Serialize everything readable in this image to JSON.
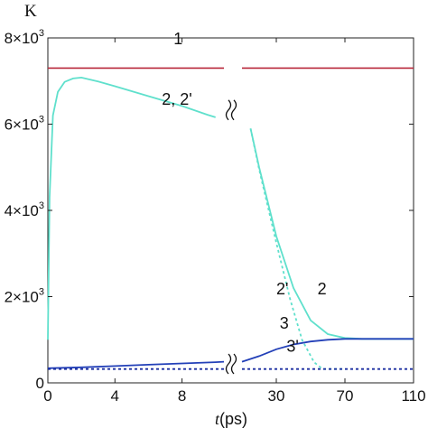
{
  "chart_data": {
    "type": "line",
    "ylabel": "K",
    "xlabel_var": "t",
    "xlabel_unit": "(ps)",
    "colors": {
      "red": "#b8283a",
      "cyan": "#5fe0cc",
      "blue": "#2340b8",
      "dark_blue": "#1c2fa0"
    },
    "x_ticks_left": [
      0,
      4,
      8
    ],
    "x_ticks_right": [
      30,
      70,
      110
    ],
    "x_range_left": [
      0,
      10.5
    ],
    "x_range_right": [
      10,
      110
    ],
    "ylim": [
      0,
      8000
    ],
    "y_ticks": [
      {
        "value": 0,
        "mant": "0",
        "exp": ""
      },
      {
        "value": 2000,
        "mant": "2×10",
        "exp": "3"
      },
      {
        "value": 4000,
        "mant": "4×10",
        "exp": "3"
      },
      {
        "value": 6000,
        "mant": "6×10",
        "exp": "3"
      },
      {
        "value": 8000,
        "mant": "8×10",
        "exp": "3"
      }
    ],
    "series": [
      {
        "id": "1",
        "color": "red",
        "style": "solid",
        "left": [
          [
            0,
            7300
          ],
          [
            10.5,
            7300
          ]
        ],
        "right": [
          [
            10,
            7300
          ],
          [
            110,
            7300
          ]
        ]
      },
      {
        "id": "2",
        "color": "cyan",
        "style": "solid",
        "left": [
          [
            0,
            1000
          ],
          [
            0.1,
            4300
          ],
          [
            0.3,
            6200
          ],
          [
            0.6,
            6750
          ],
          [
            1,
            6980
          ],
          [
            1.5,
            7060
          ],
          [
            2,
            7080
          ],
          [
            3,
            6990
          ],
          [
            4,
            6880
          ],
          [
            6,
            6650
          ],
          [
            8,
            6420
          ],
          [
            9.5,
            6220
          ],
          [
            10,
            6160
          ]
        ],
        "right": [
          [
            15,
            5900
          ],
          [
            20,
            5000
          ],
          [
            30,
            3400
          ],
          [
            40,
            2200
          ],
          [
            50,
            1450
          ],
          [
            60,
            1130
          ],
          [
            70,
            1040
          ],
          [
            80,
            1020
          ],
          [
            110,
            1020
          ]
        ]
      },
      {
        "id": "2'",
        "color": "cyan",
        "style": "dashed",
        "left": [],
        "right": [
          [
            15,
            5900
          ],
          [
            20,
            4950
          ],
          [
            30,
            3250
          ],
          [
            38,
            1950
          ],
          [
            45,
            1000
          ],
          [
            52,
            480
          ],
          [
            57,
            320
          ],
          [
            62,
            320
          ],
          [
            70,
            320
          ]
        ]
      },
      {
        "id": "3",
        "color": "blue",
        "style": "solid",
        "left": [
          [
            0,
            340
          ],
          [
            2,
            360
          ],
          [
            4,
            390
          ],
          [
            6,
            420
          ],
          [
            8,
            450
          ],
          [
            10,
            480
          ],
          [
            10.5,
            490
          ]
        ],
        "right": [
          [
            10,
            490
          ],
          [
            20,
            620
          ],
          [
            30,
            780
          ],
          [
            40,
            890
          ],
          [
            50,
            960
          ],
          [
            60,
            1000
          ],
          [
            70,
            1020
          ],
          [
            110,
            1020
          ]
        ]
      },
      {
        "id": "3'",
        "color": "dark_blue",
        "style": "dashed",
        "left": [
          [
            0,
            320
          ],
          [
            10.5,
            320
          ]
        ],
        "right": [
          [
            10,
            320
          ],
          [
            110,
            320
          ]
        ]
      }
    ],
    "annotations": [
      {
        "text": "1",
        "x": 7.5,
        "y": 7850,
        "panel": "left"
      },
      {
        "text": "2, 2'",
        "x": 6.8,
        "y": 6450,
        "panel": "left"
      },
      {
        "text": "2'",
        "x": 30,
        "y": 2050,
        "panel": "right"
      },
      {
        "text": "2",
        "x": 54,
        "y": 2050,
        "panel": "right"
      },
      {
        "text": "3",
        "x": 32,
        "y": 1260,
        "panel": "right"
      },
      {
        "text": "3'",
        "x": 36,
        "y": 720,
        "panel": "right"
      }
    ]
  }
}
